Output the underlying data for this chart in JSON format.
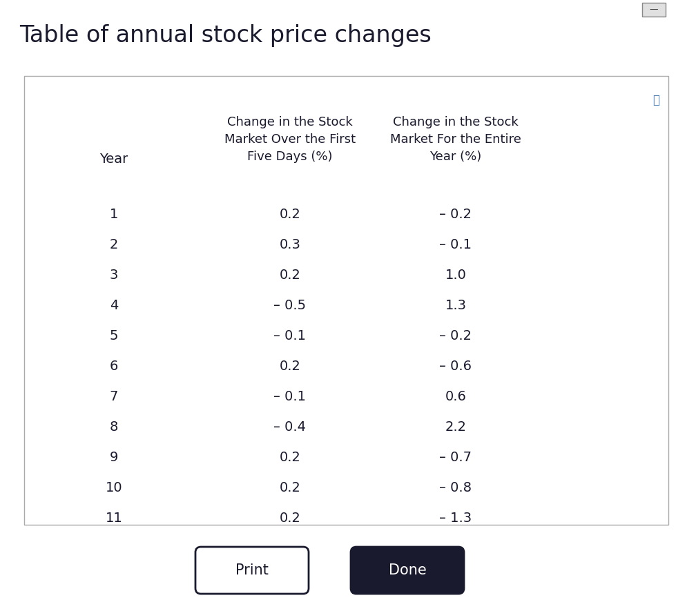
{
  "title": "Table of annual stock price changes",
  "title_fontsize": 24,
  "title_color": "#1a1a2e",
  "background_color": "#ffffff",
  "table_bg": "#ffffff",
  "header_col1": "Year",
  "header_col2": "Change in the Stock\nMarket Over the First\nFive Days (%)",
  "header_col3": "Change in the Stock\nMarket For the Entire\nYear (%)",
  "years": [
    "1",
    "2",
    "3",
    "4",
    "5",
    "6",
    "7",
    "8",
    "9",
    "10",
    "11"
  ],
  "five_days": [
    "0.2",
    "0.3",
    "0.2",
    "– 0.5",
    "– 0.1",
    "0.2",
    "– 0.1",
    "– 0.4",
    "0.2",
    "0.2",
    "0.2"
  ],
  "entire_year": [
    "– 0.2",
    "– 0.1",
    "1.0",
    "1.3",
    "– 0.2",
    "– 0.6",
    "0.6",
    "2.2",
    "– 0.7",
    "– 0.8",
    "– 1.3"
  ],
  "print_btn_text": "Print",
  "done_btn_text": "Done",
  "print_btn_facecolor": "#ffffff",
  "print_btn_edgecolor": "#1a1a2e",
  "done_btn_facecolor": "#1a1a2e",
  "done_btn_edgecolor": "#1a1a2e",
  "btn_text_color_print": "#1a1a2e",
  "btn_text_color_done": "#ffffff",
  "data_fontsize": 14,
  "header_fontsize": 13,
  "year_label_fontsize": 14,
  "btn_fontsize": 15,
  "table_edge_color": "#aaaaaa",
  "icon_color": "#4a7fb5",
  "text_color": "#1a1a2e"
}
